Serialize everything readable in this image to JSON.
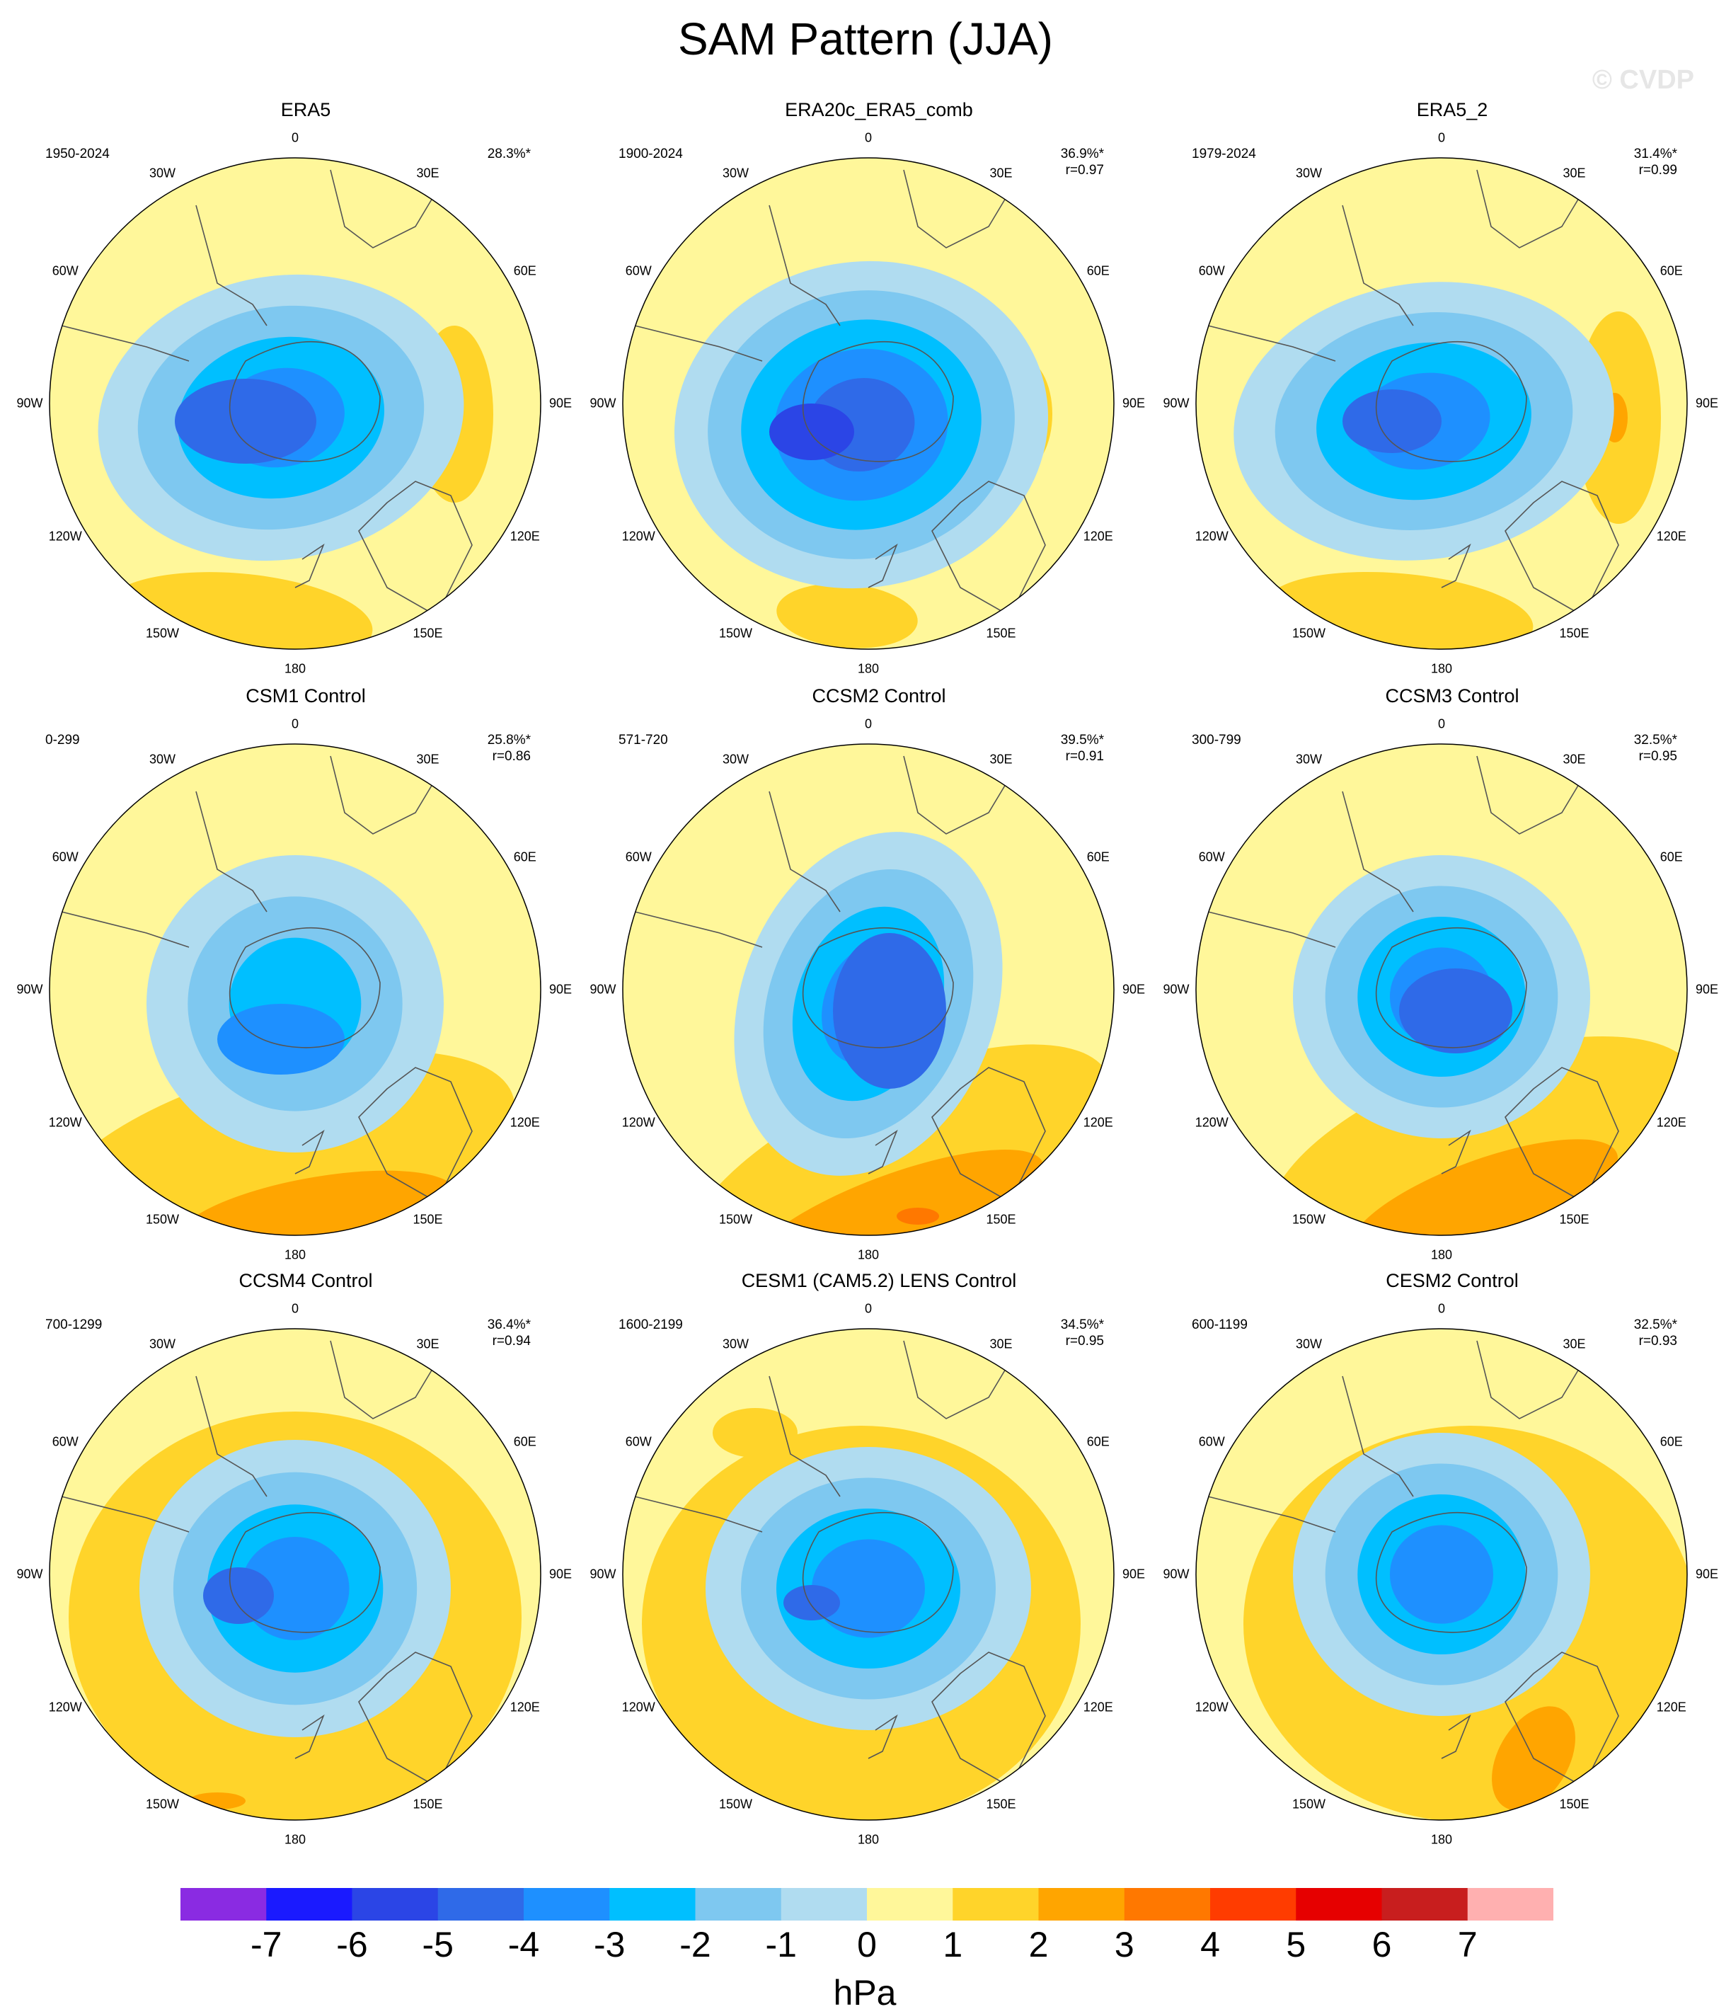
{
  "title": "SAM Pattern (JJA)",
  "copyright": "© CVDP",
  "lon_labels": [
    "0",
    "30E",
    "60E",
    "90E",
    "120E",
    "150E",
    "180",
    "150W",
    "120W",
    "90W",
    "60W",
    "30W"
  ],
  "panels": [
    {
      "name": "ERA5",
      "period": "1950-2024",
      "pct": "28.3%*",
      "r": ""
    },
    {
      "name": "ERA20c_ERA5_comb",
      "period": "1900-2024",
      "pct": "36.9%*",
      "r": "r=0.97"
    },
    {
      "name": "ERA5_2",
      "period": "1979-2024",
      "pct": "31.4%*",
      "r": "r=0.99"
    },
    {
      "name": "CSM1 Control",
      "period": "0-299",
      "pct": "25.8%*",
      "r": "r=0.86"
    },
    {
      "name": "CCSM2 Control",
      "period": "571-720",
      "pct": "39.5%*",
      "r": "r=0.91"
    },
    {
      "name": "CCSM3 Control",
      "period": "300-799",
      "pct": "32.5%*",
      "r": "r=0.95"
    },
    {
      "name": "CCSM4 Control",
      "period": "700-1299",
      "pct": "36.4%*",
      "r": "r=0.94"
    },
    {
      "name": "CESM1 (CAM5.2) LENS Control",
      "period": "1600-2199",
      "pct": "34.5%*",
      "r": "r=0.95"
    },
    {
      "name": "CESM2 Control",
      "period": "600-1199",
      "pct": "32.5%*",
      "r": "r=0.93"
    }
  ],
  "colorbar": {
    "unit": "hPa",
    "labels": [
      "-7",
      "-6",
      "-5",
      "-4",
      "-3",
      "-2",
      "-1",
      "0",
      "1",
      "2",
      "3",
      "4",
      "5",
      "6",
      "7"
    ],
    "colors": [
      "#8a2be2",
      "#1a1aff",
      "#2b45e6",
      "#2f6ae8",
      "#1e90ff",
      "#00bfff",
      "#7ec8f0",
      "#b0dcf0",
      "#fff79a",
      "#ffd42a",
      "#ffa500",
      "#ff7800",
      "#ff3c00",
      "#e60000",
      "#c81e1e",
      "#ffb0b0"
    ]
  }
}
